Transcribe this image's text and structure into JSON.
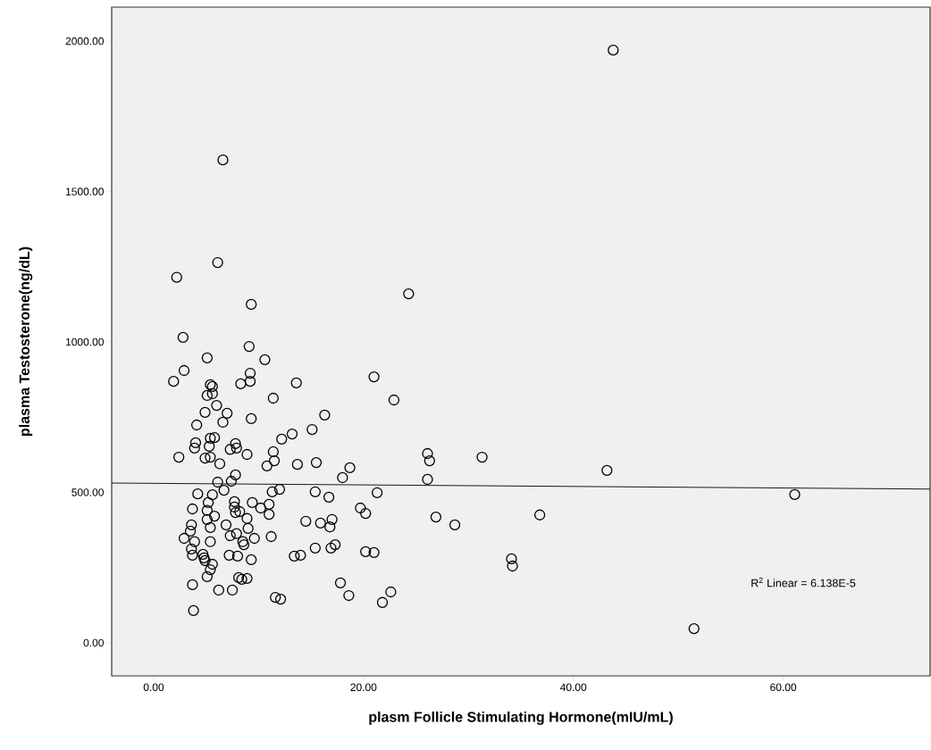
{
  "chart_data": {
    "type": "scatter",
    "xlabel": "plasm Follicle Stimulating Hormone(mIU/mL)",
    "ylabel": "plasma Testosterone(ng/dL)",
    "xlim": [
      -4,
      74
    ],
    "ylim": [
      -110,
      2113
    ],
    "xticks": [
      {
        "value": 0,
        "label": "0.00"
      },
      {
        "value": 20,
        "label": "20.00"
      },
      {
        "value": 40,
        "label": "40.00"
      },
      {
        "value": 60,
        "label": "60.00"
      }
    ],
    "yticks": [
      {
        "value": 0,
        "label": "0.00"
      },
      {
        "value": 500,
        "label": "500.00"
      },
      {
        "value": 1000,
        "label": "1000.00"
      },
      {
        "value": 1500,
        "label": "1500.00"
      },
      {
        "value": 2000,
        "label": "2000.00"
      }
    ],
    "annotations": [
      "R$^{2}$ Linear = 6.138E-5"
    ],
    "series": [
      {
        "marker": "circle",
        "color": "#000000",
        "x": [
          43.8,
          31.3,
          43.2,
          61.1,
          36.8,
          34.1,
          34.2,
          51.5,
          6.6,
          6.1,
          2.2,
          24.3,
          13.6,
          11.4,
          21.0,
          22.9,
          16.3,
          15.1,
          13.2,
          12.2,
          11.4,
          11.5,
          10.8,
          13.7,
          15.5,
          26.1,
          26.3,
          18.7,
          18.0,
          26.1,
          12.0,
          11.3,
          15.4,
          16.7,
          21.3,
          11.0,
          11.0,
          19.7,
          20.2,
          26.9,
          28.7,
          14.5,
          15.9,
          17.0,
          16.8,
          11.2,
          15.4,
          17.3,
          16.9,
          13.4,
          14.0,
          20.2,
          21.0,
          17.8,
          18.6,
          22.6,
          21.8,
          11.6,
          12.1,
          9.3,
          2.8,
          9.1,
          5.1,
          10.6,
          2.9,
          1.9,
          9.2,
          9.2,
          8.3,
          5.4,
          5.6,
          5.1,
          5.6,
          6.0,
          4.9,
          7.0,
          9.3,
          4.1,
          6.6,
          4.0,
          3.9,
          5.4,
          5.8,
          5.3,
          7.8,
          7.9,
          7.3,
          8.9,
          2.4,
          4.9,
          5.4,
          6.3,
          6.1,
          7.4,
          7.8,
          6.7,
          4.2,
          5.6,
          3.7,
          5.2,
          5.1,
          5.8,
          5.1,
          5.4,
          7.7,
          7.7,
          7.8,
          8.2,
          8.9,
          9.4,
          10.2,
          6.9,
          7.3,
          7.9,
          9.0,
          8.5,
          8.6,
          9.6,
          3.6,
          3.5,
          2.9,
          3.9,
          5.4,
          3.6,
          3.7,
          4.7,
          4.8,
          4.9,
          5.6,
          5.4,
          5.1,
          7.2,
          8.0,
          9.3,
          8.1,
          8.9,
          8.4,
          3.7,
          6.2,
          7.5,
          3.8
        ],
        "values": [
          1970,
          617,
          573,
          493,
          425,
          279,
          255,
          47,
          1605,
          1264,
          1215,
          1160,
          864,
          813,
          884,
          807,
          757,
          709,
          694,
          677,
          635,
          605,
          588,
          593,
          599,
          629,
          605,
          582,
          549,
          543,
          510,
          502,
          502,
          484,
          499,
          460,
          427,
          448,
          430,
          418,
          392,
          404,
          398,
          410,
          385,
          353,
          315,
          326,
          315,
          288,
          291,
          303,
          300,
          199,
          157,
          169,
          134,
          151,
          145,
          1125,
          1015,
          985,
          947,
          941,
          905,
          869,
          896,
          869,
          861,
          858,
          852,
          822,
          828,
          789,
          766,
          763,
          745,
          724,
          733,
          665,
          647,
          680,
          682,
          653,
          662,
          647,
          643,
          626,
          617,
          614,
          617,
          595,
          534,
          537,
          558,
          507,
          495,
          492,
          445,
          466,
          440,
          421,
          410,
          383,
          469,
          451,
          433,
          436,
          413,
          466,
          448,
          392,
          356,
          363,
          380,
          336,
          326,
          347,
          392,
          371,
          347,
          336,
          336,
          312,
          291,
          294,
          282,
          273,
          261,
          243,
          220,
          291,
          288,
          276,
          217,
          214,
          211,
          193,
          175,
          175,
          107
        ]
      },
      {
        "type": "line",
        "marker": "none",
        "color": "#000000",
        "x": [
          -4,
          74
        ],
        "values": [
          531,
          511
        ]
      }
    ]
  }
}
